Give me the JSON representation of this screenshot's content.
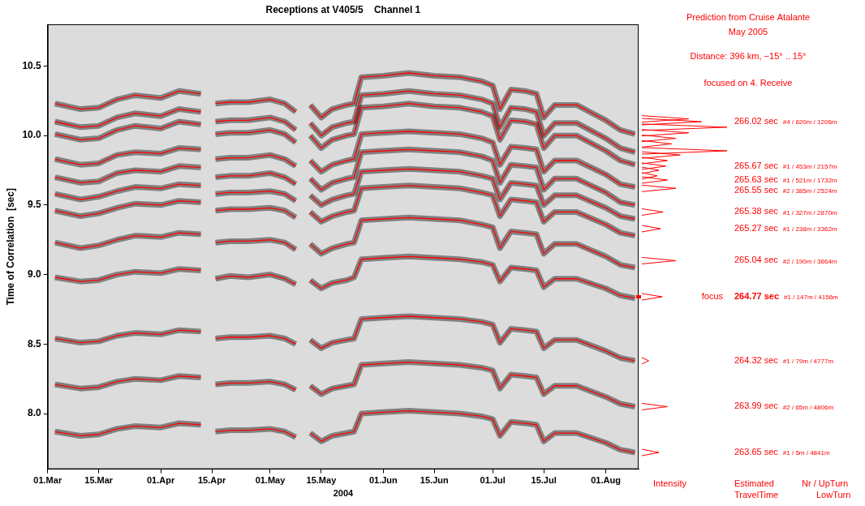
{
  "chart_data": {
    "type": "line",
    "title": "Receptions at V405/5    Channel 1",
    "ylabel": "Time of Correlation  [sec]",
    "xlabel": "2004",
    "color": "#ff0000",
    "grid": false,
    "xlim": [
      "2004-03-01",
      "2004-08-10"
    ],
    "xticks": [
      {
        "value": "2004-03-01",
        "label": "01.Mar"
      },
      {
        "value": "2004-03-15",
        "label": "15.Mar"
      },
      {
        "value": "2004-04-01",
        "label": "01.Apr"
      },
      {
        "value": "2004-04-15",
        "label": "15.Apr"
      },
      {
        "value": "2004-05-01",
        "label": "01.May"
      },
      {
        "value": "2004-05-15",
        "label": "15.May"
      },
      {
        "value": "2004-06-01",
        "label": "01.Jun"
      },
      {
        "value": "2004-06-15",
        "label": "15.Jun"
      },
      {
        "value": "2004-07-01",
        "label": "01.Jul"
      },
      {
        "value": "2004-07-15",
        "label": "15.Jul"
      },
      {
        "value": "2004-08-01",
        "label": "01.Aug"
      }
    ],
    "ylim": [
      7.6,
      10.8
    ],
    "yticks": [
      {
        "value": 8,
        "label": "8.0"
      },
      8.5,
      {
        "value": 9,
        "label": "9.0"
      },
      9.5,
      {
        "value": 10,
        "label": "10.0"
      },
      10.5
    ],
    "x": [
      "2004-03-03",
      "2004-03-10",
      "2004-03-15",
      "2004-03-20",
      "2004-03-25",
      "2004-04-01",
      "2004-04-06",
      "2004-04-12",
      "2004-04-14",
      "2004-04-16",
      "2004-04-20",
      "2004-04-25",
      "2004-05-01",
      "2004-05-05",
      "2004-05-08",
      "2004-05-10",
      "2004-05-12",
      "2004-05-15",
      "2004-05-18",
      "2004-05-22",
      "2004-05-24",
      "2004-05-26",
      "2004-06-01",
      "2004-06-08",
      "2004-06-15",
      "2004-06-22",
      "2004-06-28",
      "2004-07-01",
      "2004-07-03",
      "2004-07-06",
      "2004-07-10",
      "2004-07-13",
      "2004-07-15",
      "2004-07-18",
      "2004-07-24",
      "2004-08-01",
      "2004-08-05",
      "2004-08-09"
    ],
    "series": [
      {
        "values": [
          7.87,
          7.84,
          7.85,
          7.89,
          7.91,
          7.9,
          7.93,
          7.92,
          null,
          7.87,
          7.88,
          7.88,
          7.89,
          7.87,
          7.83,
          null,
          7.86,
          7.8,
          7.84,
          7.86,
          7.87,
          8.0,
          8.01,
          8.02,
          8.01,
          8.0,
          7.98,
          7.96,
          7.84,
          7.94,
          7.93,
          7.92,
          7.8,
          7.86,
          7.86,
          7.79,
          7.74,
          7.72
        ]
      },
      {
        "values": [
          8.21,
          8.18,
          8.19,
          8.23,
          8.25,
          8.24,
          8.27,
          8.26,
          null,
          8.21,
          8.22,
          8.22,
          8.23,
          8.21,
          8.17,
          null,
          8.2,
          8.14,
          8.18,
          8.2,
          8.21,
          8.35,
          8.36,
          8.37,
          8.36,
          8.35,
          8.33,
          8.31,
          8.18,
          8.28,
          8.27,
          8.26,
          8.14,
          8.2,
          8.2,
          8.12,
          8.07,
          8.05
        ]
      },
      {
        "values": [
          8.54,
          8.51,
          8.52,
          8.56,
          8.58,
          8.57,
          8.6,
          8.59,
          null,
          8.54,
          8.55,
          8.55,
          8.56,
          8.54,
          8.5,
          null,
          8.53,
          8.47,
          8.51,
          8.53,
          8.54,
          8.68,
          8.69,
          8.7,
          8.69,
          8.68,
          8.66,
          8.64,
          8.51,
          8.61,
          8.6,
          8.59,
          8.47,
          8.53,
          8.53,
          8.45,
          8.4,
          8.38
        ]
      },
      {
        "values": [
          8.98,
          8.95,
          8.96,
          9.0,
          9.02,
          9.01,
          9.04,
          9.03,
          null,
          8.97,
          8.99,
          8.98,
          9.0,
          8.97,
          8.93,
          null,
          8.96,
          8.9,
          8.94,
          8.96,
          8.98,
          9.11,
          9.12,
          9.13,
          9.12,
          9.11,
          9.09,
          9.07,
          8.95,
          9.05,
          9.04,
          9.03,
          8.91,
          8.97,
          8.97,
          8.9,
          8.85,
          8.83
        ]
      },
      {
        "values": [
          9.23,
          9.19,
          9.21,
          9.25,
          9.28,
          9.27,
          9.3,
          9.29,
          null,
          9.23,
          9.24,
          9.24,
          9.25,
          9.23,
          9.18,
          null,
          9.22,
          9.15,
          9.19,
          9.22,
          9.23,
          9.39,
          9.4,
          9.41,
          9.4,
          9.39,
          9.36,
          9.34,
          9.19,
          9.31,
          9.3,
          9.29,
          9.15,
          9.22,
          9.22,
          9.13,
          9.07,
          9.05
        ]
      },
      {
        "values": [
          9.46,
          9.42,
          9.44,
          9.48,
          9.51,
          9.5,
          9.53,
          9.52,
          null,
          9.46,
          9.47,
          9.47,
          9.48,
          9.46,
          9.41,
          null,
          9.45,
          9.38,
          9.42,
          9.45,
          9.46,
          9.62,
          9.63,
          9.64,
          9.63,
          9.62,
          9.59,
          9.57,
          9.42,
          9.54,
          9.53,
          9.52,
          9.38,
          9.45,
          9.45,
          9.36,
          9.3,
          9.28
        ]
      },
      {
        "values": [
          9.58,
          9.54,
          9.56,
          9.6,
          9.63,
          9.62,
          9.65,
          9.64,
          null,
          9.58,
          9.59,
          9.59,
          9.6,
          9.58,
          9.53,
          null,
          9.57,
          9.5,
          9.54,
          9.57,
          9.58,
          9.74,
          9.75,
          9.76,
          9.75,
          9.74,
          9.71,
          9.69,
          9.54,
          9.66,
          9.65,
          9.64,
          9.5,
          9.57,
          9.57,
          9.48,
          9.42,
          9.4
        ]
      },
      {
        "values": [
          9.7,
          9.66,
          9.67,
          9.73,
          9.75,
          9.74,
          9.78,
          9.77,
          null,
          9.7,
          9.71,
          9.71,
          9.73,
          9.7,
          9.65,
          null,
          9.69,
          9.61,
          9.66,
          9.69,
          9.7,
          9.88,
          9.89,
          9.9,
          9.89,
          9.88,
          9.85,
          9.82,
          9.66,
          9.79,
          9.78,
          9.77,
          9.61,
          9.69,
          9.69,
          9.59,
          9.52,
          9.5
        ]
      },
      {
        "values": [
          9.83,
          9.79,
          9.8,
          9.86,
          9.88,
          9.87,
          9.91,
          9.9,
          null,
          9.83,
          9.84,
          9.84,
          9.86,
          9.83,
          9.78,
          null,
          9.82,
          9.74,
          9.79,
          9.82,
          9.83,
          10.01,
          10.02,
          10.03,
          10.02,
          10.01,
          9.98,
          9.95,
          9.79,
          9.92,
          9.91,
          9.9,
          9.74,
          9.82,
          9.82,
          9.72,
          9.65,
          9.63
        ]
      },
      {
        "values": [
          10.01,
          9.97,
          9.98,
          10.04,
          10.07,
          10.05,
          10.1,
          10.08,
          null,
          10.01,
          10.02,
          10.02,
          10.04,
          10.01,
          9.95,
          null,
          10.0,
          9.91,
          9.97,
          10.0,
          10.01,
          10.2,
          10.21,
          10.23,
          10.21,
          10.2,
          10.17,
          10.14,
          9.97,
          10.11,
          10.1,
          10.08,
          9.91,
          10.0,
          10.0,
          9.89,
          9.82,
          9.79
        ]
      },
      {
        "values": [
          10.1,
          10.06,
          10.07,
          10.13,
          10.16,
          10.14,
          10.19,
          10.17,
          null,
          10.1,
          10.11,
          10.11,
          10.13,
          10.1,
          10.04,
          null,
          10.09,
          10.0,
          10.06,
          10.09,
          10.1,
          10.29,
          10.3,
          10.32,
          10.3,
          10.29,
          10.26,
          10.23,
          10.06,
          10.2,
          10.19,
          10.17,
          10.0,
          10.09,
          10.09,
          9.98,
          9.91,
          9.88
        ]
      },
      {
        "values": [
          10.23,
          10.19,
          10.2,
          10.26,
          10.29,
          10.27,
          10.32,
          10.3,
          null,
          10.23,
          10.24,
          10.24,
          10.26,
          10.23,
          10.17,
          null,
          10.22,
          10.13,
          10.19,
          10.22,
          10.23,
          10.42,
          10.43,
          10.45,
          10.43,
          10.42,
          10.39,
          10.36,
          10.19,
          10.33,
          10.32,
          10.3,
          10.13,
          10.22,
          10.22,
          10.11,
          10.04,
          10.01
        ]
      }
    ],
    "annotations": [
      "Prediction from Cruise Atalante",
      "May 2005",
      "Distance: 396 km, −15° .. 15°",
      "focused on 4. Receive"
    ],
    "column_labels": [
      "Intensity",
      "Estimated TravelTime",
      "Nr / UpTurn LowTurn"
    ],
    "predictions": [
      {
        "value": 10.12,
        "intensity": 0.55
      },
      {
        "value": 10.1,
        "intensity": 0.7,
        "travel_time": "266.02 sec",
        "ray": "#4 / 620m / 1206m"
      },
      {
        "value": 10.06,
        "intensity": 1.0
      },
      {
        "value": 10.02,
        "intensity": 0.55
      },
      {
        "value": 9.98,
        "intensity": 0.4
      },
      {
        "value": 9.94,
        "intensity": 0.35
      },
      {
        "value": 9.89,
        "intensity": 1.0
      },
      {
        "value": 9.86,
        "intensity": 0.45
      },
      {
        "value": 9.82,
        "intensity": 0.3
      },
      {
        "value": 9.78,
        "intensity": 0.28,
        "travel_time": "265.67 sec",
        "ray": "#1 / 453m / 2157m"
      },
      {
        "value": 9.75,
        "intensity": 0.2
      },
      {
        "value": 9.71,
        "intensity": 0.18
      },
      {
        "value": 9.68,
        "intensity": 0.3,
        "travel_time": "265.63 sec",
        "ray": "#1 / 521m / 1732m"
      },
      {
        "value": 9.62,
        "intensity": 0.4,
        "travel_time": "265.55 sec",
        "ray": "#2 / 385m / 2524m"
      },
      {
        "value": 9.45,
        "intensity": 0.25,
        "travel_time": "265.38 sec",
        "ray": "#1 / 327m / 2870m"
      },
      {
        "value": 9.33,
        "intensity": 0.22,
        "travel_time": "265.27 sec",
        "ray": "#1 / 238m / 3362m"
      },
      {
        "value": 9.1,
        "intensity": 0.4,
        "travel_time": "265.04 sec",
        "ray": "#2 / 190m / 3664m"
      },
      {
        "value": 8.84,
        "intensity": 0.24,
        "travel_time": "264.77 sec",
        "ray": "#1 / 147m / 4156m",
        "note": "focus"
      },
      {
        "value": 8.38,
        "intensity": 0.08,
        "travel_time": "264.32 sec",
        "ray": "#1 / 79m / 4777m"
      },
      {
        "value": 8.05,
        "intensity": 0.3,
        "travel_time": "263.99 sec",
        "ray": "#2 / 65m / 4806m"
      },
      {
        "value": 7.72,
        "intensity": 0.2,
        "travel_time": "263.65 sec",
        "ray": "#1 / 5m / 4841m"
      }
    ]
  }
}
